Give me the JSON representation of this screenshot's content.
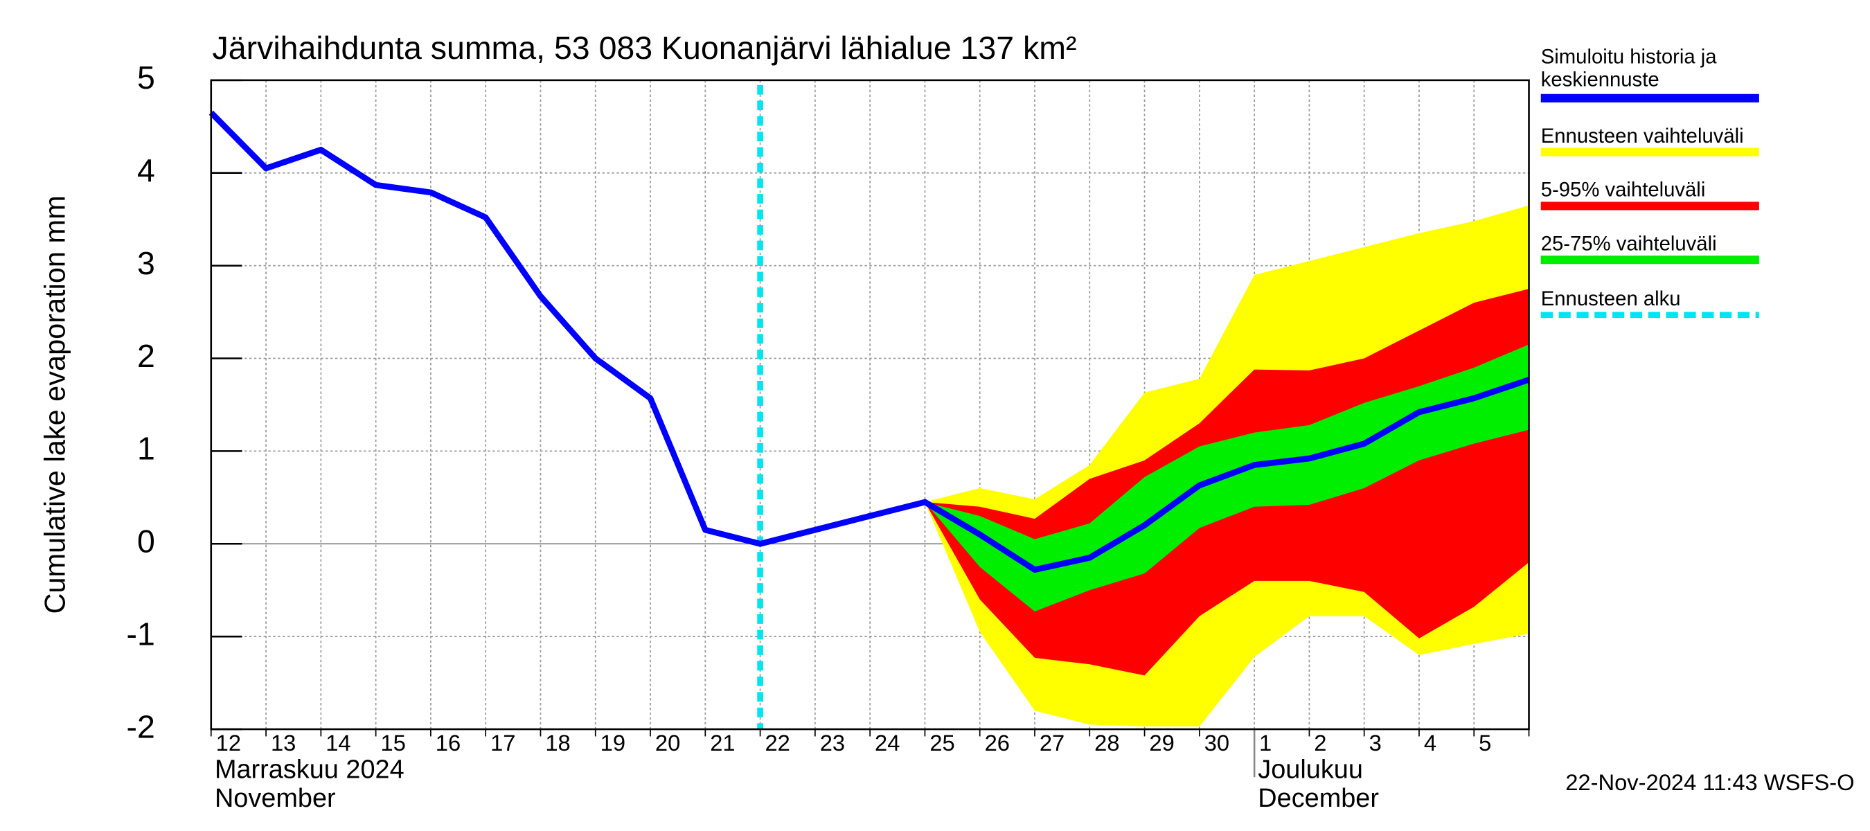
{
  "chart_data": {
    "type": "band-line",
    "title": "Järvihaihdunta summa, 53 083 Kuonanjärvi lähialue 137 km²",
    "y_label": "Cumulative lake evaporation   mm",
    "categories": [
      "12",
      "13",
      "14",
      "15",
      "16",
      "17",
      "18",
      "19",
      "20",
      "21",
      "22",
      "23",
      "24",
      "25",
      "26",
      "27",
      "28",
      "29",
      "30",
      "1",
      "2",
      "3",
      "4",
      "5",
      null
    ],
    "month_labels": [
      {
        "index": 0,
        "lines": [
          "Marraskuu 2024",
          "November"
        ]
      },
      {
        "index": 19,
        "lines": [
          "Joulukuu",
          "December"
        ]
      }
    ],
    "ylim": [
      -2,
      5
    ],
    "yticks": [
      -2,
      -1,
      0,
      1,
      2,
      3,
      4,
      5
    ],
    "grid": true,
    "forecast_start": 10,
    "forecast_start_label": "Ennusteen alku",
    "forecast_color": "#00e5ee",
    "series": [
      {
        "name": "Simuloitu historia ja keskiennuste",
        "kind": "line",
        "color": "#0000ff",
        "values": [
          4.65,
          4.05,
          4.25,
          3.87,
          3.79,
          3.52,
          2.67,
          2.0,
          1.57,
          0.15,
          0.0,
          0.15,
          0.3,
          0.45,
          0.1,
          -0.28,
          -0.15,
          0.2,
          0.63,
          0.85,
          0.92,
          1.08,
          1.42,
          1.57,
          1.77
        ]
      },
      {
        "name": "Ennusteen vaihteluväli",
        "kind": "band",
        "color": "#ffff00",
        "upper": [
          null,
          null,
          null,
          null,
          null,
          null,
          null,
          null,
          null,
          null,
          null,
          null,
          null,
          0.45,
          0.6,
          0.48,
          0.85,
          1.63,
          1.78,
          2.9,
          3.05,
          3.2,
          3.35,
          3.48,
          3.65
        ],
        "lower": [
          null,
          null,
          null,
          null,
          null,
          null,
          null,
          null,
          null,
          null,
          null,
          null,
          null,
          0.45,
          -0.95,
          -1.8,
          -1.95,
          -1.97,
          -1.97,
          -1.22,
          -0.78,
          -0.78,
          -1.2,
          -1.08,
          -0.97
        ]
      },
      {
        "name": "5-95% vaihteluväli",
        "kind": "band",
        "color": "#ff0000",
        "upper": [
          null,
          null,
          null,
          null,
          null,
          null,
          null,
          null,
          null,
          null,
          null,
          null,
          null,
          0.45,
          0.4,
          0.27,
          0.7,
          0.9,
          1.3,
          1.88,
          1.87,
          2.0,
          2.3,
          2.6,
          2.75
        ],
        "lower": [
          null,
          null,
          null,
          null,
          null,
          null,
          null,
          null,
          null,
          null,
          null,
          null,
          null,
          0.45,
          -0.6,
          -1.23,
          -1.3,
          -1.42,
          -0.78,
          -0.4,
          -0.4,
          -0.52,
          -1.02,
          -0.68,
          -0.2
        ]
      },
      {
        "name": "25-75% vaihteluväli",
        "kind": "band",
        "color": "#00ee00",
        "upper": [
          null,
          null,
          null,
          null,
          null,
          null,
          null,
          null,
          null,
          null,
          null,
          null,
          null,
          0.45,
          0.3,
          0.05,
          0.22,
          0.72,
          1.05,
          1.2,
          1.28,
          1.52,
          1.7,
          1.9,
          2.15
        ],
        "lower": [
          null,
          null,
          null,
          null,
          null,
          null,
          null,
          null,
          null,
          null,
          null,
          null,
          null,
          0.45,
          -0.25,
          -0.73,
          -0.5,
          -0.32,
          0.17,
          0.4,
          0.42,
          0.6,
          0.9,
          1.08,
          1.23
        ]
      }
    ],
    "timestamp": "22-Nov-2024 11:43 WSFS-O"
  }
}
